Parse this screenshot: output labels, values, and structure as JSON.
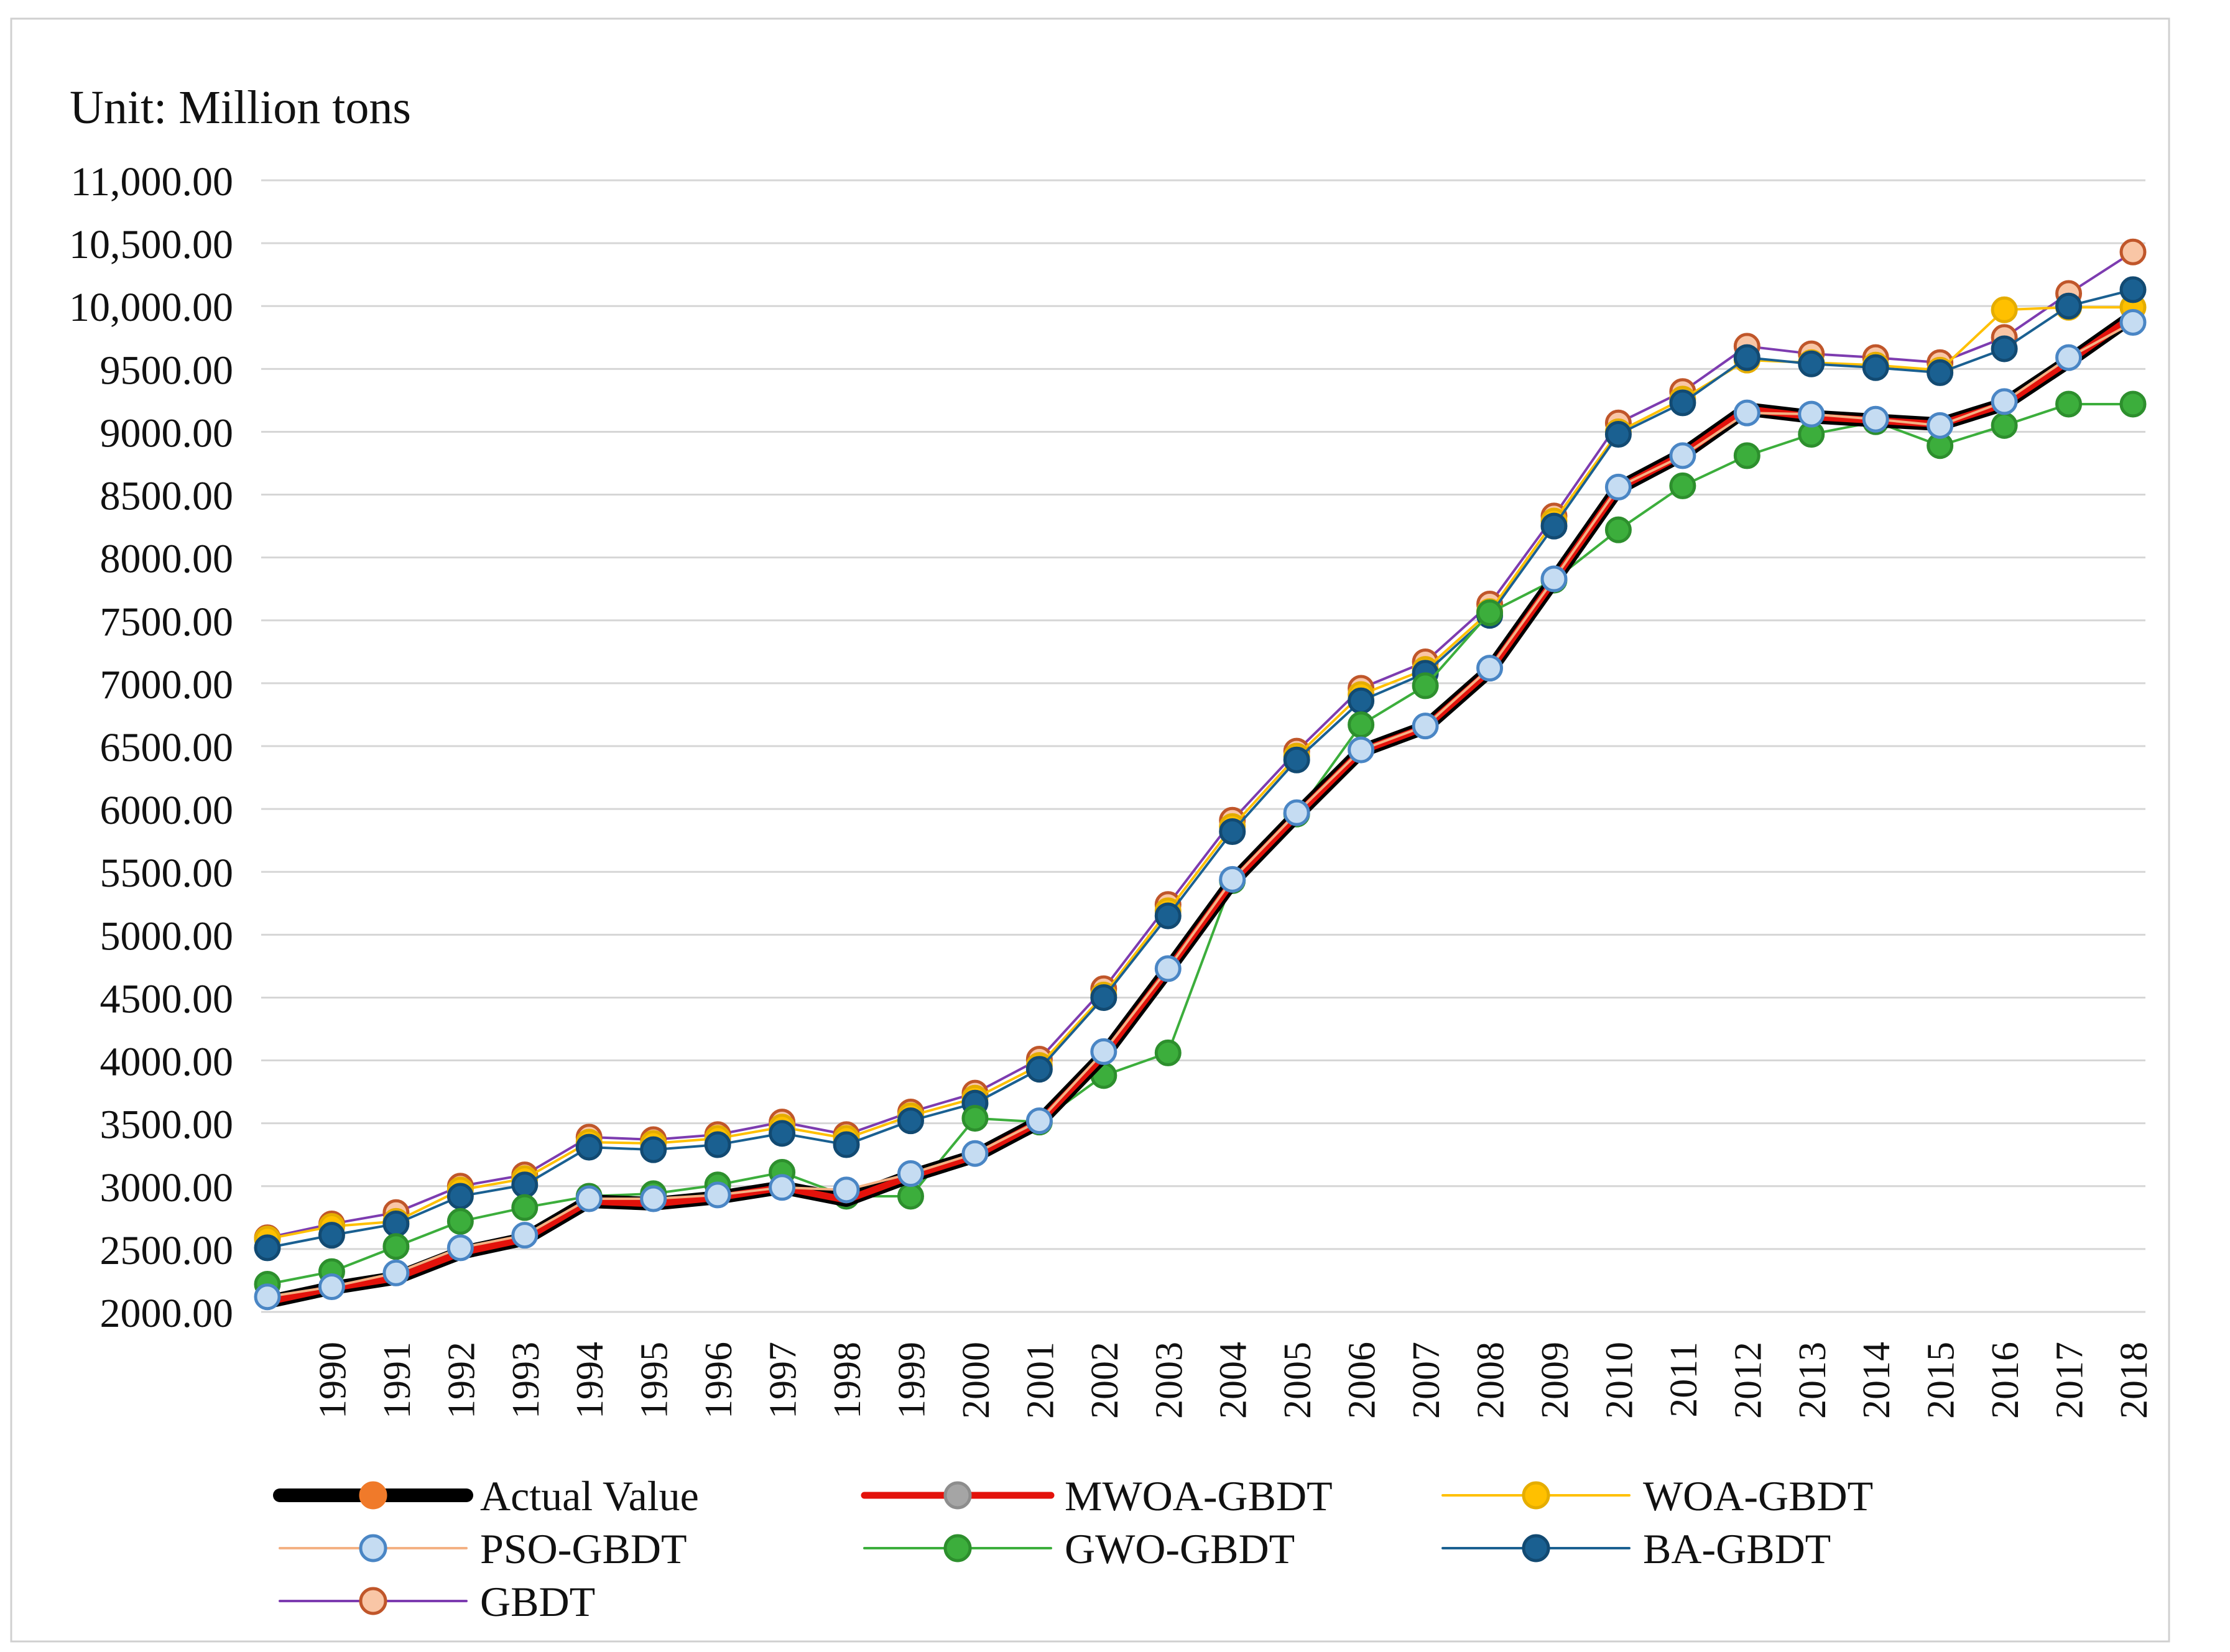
{
  "chart_data": {
    "type": "line",
    "unit_label": "Unit:   Million tons",
    "ylim": [
      2000,
      11000
    ],
    "y_ticks": [
      2000,
      2500,
      3000,
      3500,
      4000,
      4500,
      5000,
      5500,
      6000,
      6500,
      7000,
      7500,
      8000,
      8500,
      9000,
      9500,
      10000,
      10500,
      11000
    ],
    "y_tick_labels": [
      "2000.00",
      "2500.00",
      "3000.00",
      "3500.00",
      "4000.00",
      "4500.00",
      "5000.00",
      "5500.00",
      "6000.00",
      "6500.00",
      "7000.00",
      "7500.00",
      "8000.00",
      "8500.00",
      "9000.00",
      "9500.00",
      "10,000.00",
      "10,500.00",
      "11,000.00"
    ],
    "x": [
      "",
      "1990",
      "1991",
      "1992",
      "1993",
      "1994",
      "1995",
      "1996",
      "1997",
      "1998",
      "1999",
      "2000",
      "2001",
      "2002",
      "2003",
      "2004",
      "2005",
      "2006",
      "2007",
      "2008",
      "2009",
      "2010",
      "2011",
      "2012",
      "2013",
      "2014",
      "2015",
      "2016",
      "2017",
      "2018"
    ],
    "grid": true,
    "legend_position": "bottom",
    "series": [
      {
        "name": "Actual Value",
        "color": "#000000",
        "marker_fill": "#f07a2a",
        "marker_stroke": "#f07a2a",
        "line_width": 22,
        "marker": false,
        "values": [
          2080,
          2190,
          2270,
          2470,
          2580,
          2880,
          2860,
          2910,
          2990,
          2890,
          3080,
          3240,
          3510,
          4040,
          4720,
          5420,
          5950,
          6460,
          6650,
          7100,
          7820,
          8550,
          8820,
          9180,
          9120,
          9090,
          9060,
          9220,
          9560,
          9920
        ]
      },
      {
        "name": "MWOA-GBDT",
        "color": "#e3120b",
        "marker_fill": "#a5a5a5",
        "marker_stroke": "#8d8d8d",
        "line_width": 11,
        "marker": false,
        "values": [
          2080,
          2190,
          2270,
          2470,
          2580,
          2880,
          2860,
          2910,
          2990,
          2890,
          3080,
          3240,
          3510,
          4040,
          4720,
          5420,
          5950,
          6460,
          6650,
          7100,
          7820,
          8550,
          8820,
          9180,
          9120,
          9090,
          9060,
          9220,
          9560,
          9920
        ]
      },
      {
        "name": "WOA-GBDT",
        "color": "#ffc000",
        "marker_fill": "#ffc000",
        "marker_stroke": "#e5ad00",
        "line_width": 4,
        "marker": true,
        "values": [
          2580,
          2680,
          2720,
          2970,
          3060,
          3350,
          3340,
          3380,
          3470,
          3380,
          3560,
          3700,
          3960,
          4520,
          5190,
          5860,
          6420,
          6910,
          7110,
          7570,
          8290,
          9000,
          9260,
          9570,
          9550,
          9530,
          9490,
          9970,
          9990,
          9990
        ]
      },
      {
        "name": "PSO-GBDT",
        "color": "#f4b183",
        "marker_fill": "#c5dcf2",
        "marker_stroke": "#4a86c5",
        "line_width": 4,
        "marker": true,
        "values": [
          2120,
          2200,
          2310,
          2510,
          2610,
          2900,
          2900,
          2930,
          2990,
          2970,
          3100,
          3260,
          3520,
          4070,
          4730,
          5440,
          5970,
          6470,
          6660,
          7120,
          7830,
          8560,
          8810,
          9150,
          9140,
          9100,
          9050,
          9240,
          9590,
          9870
        ]
      },
      {
        "name": "GWO-GBDT",
        "color": "#3cae3c",
        "marker_fill": "#3cae3c",
        "marker_stroke": "#2d8f2d",
        "line_width": 4,
        "marker": true,
        "values": [
          2220,
          2320,
          2520,
          2720,
          2830,
          2920,
          2940,
          3010,
          3110,
          2920,
          2920,
          3540,
          3510,
          3880,
          4060,
          5430,
          5960,
          6670,
          6980,
          7560,
          7820,
          8220,
          8570,
          8810,
          8980,
          9080,
          8890,
          9050,
          9220,
          9220
        ]
      },
      {
        "name": "BA-GBDT",
        "color": "#1a6091",
        "marker_fill": "#1a6091",
        "marker_stroke": "#124a72",
        "line_width": 4,
        "marker": true,
        "values": [
          2510,
          2610,
          2700,
          2920,
          3010,
          3310,
          3290,
          3330,
          3420,
          3330,
          3520,
          3660,
          3930,
          4500,
          5150,
          5820,
          6390,
          6860,
          7080,
          7540,
          8250,
          8980,
          9230,
          9590,
          9540,
          9510,
          9470,
          9660,
          10000,
          10130
        ]
      },
      {
        "name": "GBDT",
        "color": "#7d3cb0",
        "marker_fill": "#f9c6a6",
        "marker_stroke": "#c0562a",
        "line_width": 4,
        "marker": true,
        "values": [
          2590,
          2700,
          2790,
          3000,
          3090,
          3390,
          3370,
          3410,
          3510,
          3410,
          3590,
          3740,
          4010,
          4570,
          5240,
          5910,
          6460,
          6960,
          7170,
          7630,
          8330,
          9070,
          9320,
          9680,
          9620,
          9590,
          9550,
          9750,
          10100,
          10430
        ]
      }
    ]
  }
}
